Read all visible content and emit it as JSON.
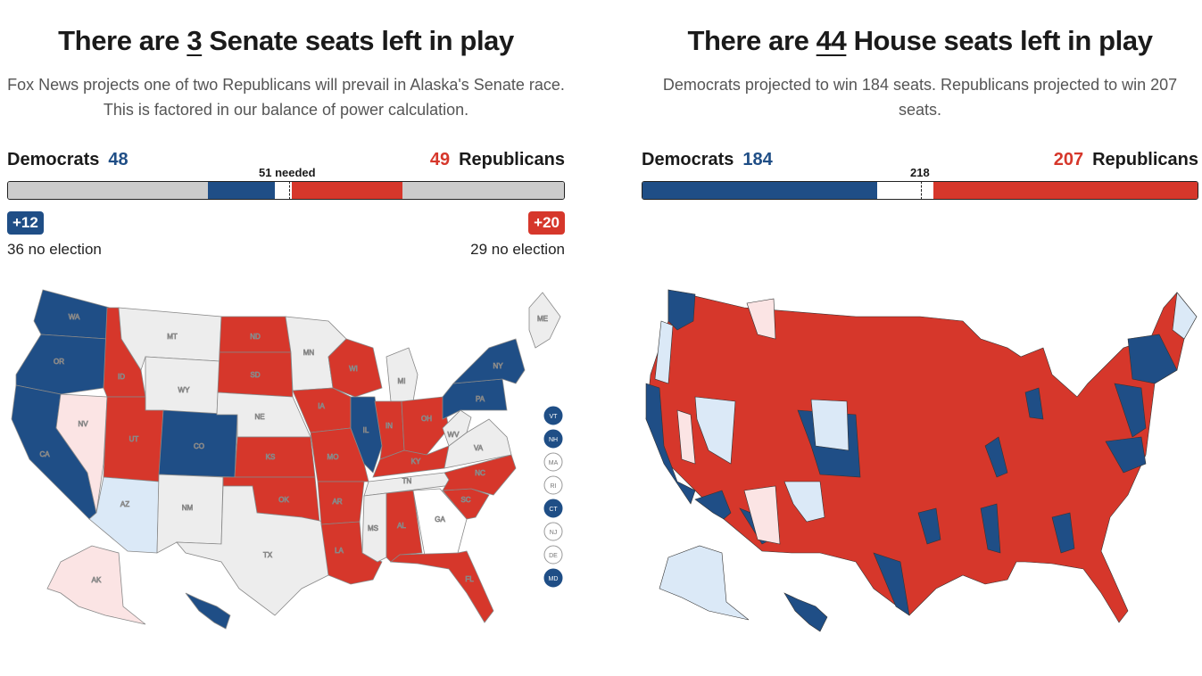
{
  "colors": {
    "dem": "#1f4e86",
    "rep": "#d6372b",
    "lean_dem": "#dbe9f7",
    "lean_rep": "#fbe4e4",
    "no_election": "#ededed",
    "undecided": "#ffffff"
  },
  "senate": {
    "headline_pre": "There are ",
    "headline_num": "3",
    "headline_post": " Senate seats left in play",
    "subtext": "Fox News projects one of two Republicans will prevail in Alaska's Senate race. This is factored in our balance of power calculation.",
    "dem_label": "Democrats",
    "dem_count": "48",
    "rep_count": "49",
    "rep_label": "Republicans",
    "needed_label": "51 needed",
    "bar": {
      "total": 100,
      "dem_no_election": 36,
      "dem_won": 12,
      "undecided": 3,
      "rep_won": 20,
      "rep_no_election": 29,
      "needed": 51
    },
    "dem_gain_badge": "+12",
    "rep_gain_badge": "+20",
    "dem_no_election": "36 no election",
    "rep_no_election": "29 no election",
    "states": [
      {
        "abbr": "WA",
        "status": "dem"
      },
      {
        "abbr": "OR",
        "status": "dem"
      },
      {
        "abbr": "CA",
        "status": "dem"
      },
      {
        "abbr": "NV",
        "status": "lean_rep"
      },
      {
        "abbr": "ID",
        "status": "rep"
      },
      {
        "abbr": "MT",
        "status": "no_election"
      },
      {
        "abbr": "WY",
        "status": "no_election"
      },
      {
        "abbr": "UT",
        "status": "rep"
      },
      {
        "abbr": "AZ",
        "status": "lean_dem"
      },
      {
        "abbr": "CO",
        "status": "dem"
      },
      {
        "abbr": "NM",
        "status": "no_election"
      },
      {
        "abbr": "ND",
        "status": "rep"
      },
      {
        "abbr": "SD",
        "status": "rep"
      },
      {
        "abbr": "NE",
        "status": "no_election"
      },
      {
        "abbr": "KS",
        "status": "rep"
      },
      {
        "abbr": "OK",
        "status": "rep"
      },
      {
        "abbr": "TX",
        "status": "no_election"
      },
      {
        "abbr": "MN",
        "status": "no_election"
      },
      {
        "abbr": "IA",
        "status": "rep"
      },
      {
        "abbr": "MO",
        "status": "rep"
      },
      {
        "abbr": "AR",
        "status": "rep"
      },
      {
        "abbr": "LA",
        "status": "rep"
      },
      {
        "abbr": "WI",
        "status": "rep"
      },
      {
        "abbr": "IL",
        "status": "dem"
      },
      {
        "abbr": "MS",
        "status": "no_election"
      },
      {
        "abbr": "MI",
        "status": "no_election"
      },
      {
        "abbr": "IN",
        "status": "rep"
      },
      {
        "abbr": "OH",
        "status": "rep"
      },
      {
        "abbr": "KY",
        "status": "rep"
      },
      {
        "abbr": "TN",
        "status": "no_election"
      },
      {
        "abbr": "AL",
        "status": "rep"
      },
      {
        "abbr": "GA",
        "status": "undecided"
      },
      {
        "abbr": "FL",
        "status": "rep"
      },
      {
        "abbr": "SC",
        "status": "rep"
      },
      {
        "abbr": "NC",
        "status": "rep"
      },
      {
        "abbr": "VA",
        "status": "no_election"
      },
      {
        "abbr": "WV",
        "status": "no_election"
      },
      {
        "abbr": "PA",
        "status": "dem"
      },
      {
        "abbr": "NY",
        "status": "dem"
      },
      {
        "abbr": "ME",
        "status": "no_election"
      },
      {
        "abbr": "AK",
        "status": "lean_rep"
      },
      {
        "abbr": "HI",
        "status": "dem"
      }
    ],
    "small_states": [
      {
        "abbr": "VT",
        "status": "dem"
      },
      {
        "abbr": "NH",
        "status": "dem"
      },
      {
        "abbr": "MA",
        "status": "no_election"
      },
      {
        "abbr": "RI",
        "status": "no_election"
      },
      {
        "abbr": "CT",
        "status": "dem"
      },
      {
        "abbr": "NJ",
        "status": "no_election"
      },
      {
        "abbr": "DE",
        "status": "no_election"
      },
      {
        "abbr": "MD",
        "status": "dem"
      }
    ]
  },
  "house": {
    "headline_pre": "There are ",
    "headline_num": "44",
    "headline_post": " House seats left in play",
    "subtext": "Democrats projected to win 184 seats. Republicans projected to win 207 seats.",
    "dem_label": "Democrats",
    "dem_count": "184",
    "rep_count": "207",
    "rep_label": "Republicans",
    "needed_label": "218",
    "bar": {
      "total": 435,
      "dem_won": 184,
      "undecided": 44,
      "rep_won": 207,
      "needed": 218
    }
  }
}
